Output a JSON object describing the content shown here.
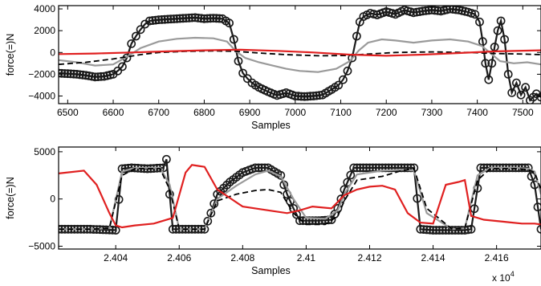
{
  "chart_data": [
    {
      "type": "line",
      "xlabel": "Samples",
      "ylabel": "force(=)N",
      "xlim": [
        6480,
        7540
      ],
      "ylim": [
        -4700,
        4300
      ],
      "xticks": [
        6500,
        6600,
        6700,
        6800,
        6900,
        7000,
        7100,
        7200,
        7300,
        7400,
        7500
      ],
      "yticks": [
        -4000,
        -2000,
        0,
        2000,
        4000
      ],
      "xtick_labels": [
        "6500",
        "6600",
        "6700",
        "6800",
        "6900",
        "7000",
        "7100",
        "7200",
        "7300",
        "7400",
        "7500"
      ],
      "ytick_labels": [
        "−4000",
        "−2000",
        "0",
        "2000",
        "4000"
      ],
      "grid": false,
      "series": [
        {
          "style": "black circle markers",
          "color": "#1a1a1a",
          "x": [
            6480,
            6500,
            6520,
            6540,
            6560,
            6580,
            6600,
            6610,
            6620,
            6630,
            6640,
            6650,
            6660,
            6670,
            6680,
            6700,
            6720,
            6740,
            6760,
            6780,
            6800,
            6820,
            6840,
            6855,
            6865,
            6875,
            6885,
            6895,
            6905,
            6920,
            6940,
            6960,
            6980,
            7000,
            7020,
            7040,
            7060,
            7080,
            7095,
            7105,
            7115,
            7125,
            7135,
            7142,
            7150,
            7165,
            7180,
            7200,
            7220,
            7240,
            7260,
            7280,
            7300,
            7320,
            7340,
            7360,
            7380,
            7395,
            7405,
            7412,
            7418,
            7425,
            7432,
            7438,
            7445,
            7452,
            7460,
            7468,
            7476,
            7486,
            7496,
            7506,
            7516,
            7530,
            7540
          ],
          "y": [
            -1900,
            -1950,
            -2000,
            -2100,
            -2250,
            -2200,
            -2000,
            -1700,
            -1300,
            -500,
            800,
            1500,
            2100,
            2600,
            2900,
            3000,
            3050,
            3100,
            3150,
            3200,
            3100,
            3150,
            3100,
            2700,
            1200,
            -800,
            -1900,
            -2400,
            -2800,
            -3200,
            -3600,
            -3950,
            -3700,
            -4000,
            -4050,
            -4000,
            -3900,
            -3400,
            -3000,
            -2500,
            -1700,
            -500,
            1500,
            2800,
            3300,
            3600,
            3450,
            3750,
            3500,
            3900,
            3650,
            3800,
            3900,
            3800,
            4000,
            3900,
            3700,
            3500,
            2800,
            1000,
            -1000,
            -2500,
            -1000,
            500,
            2000,
            2900,
            1200,
            -2000,
            -3700,
            -2800,
            -3900,
            -3200,
            -4400,
            -3800,
            -4100
          ]
        },
        {
          "style": "black dashed line",
          "color": "#000000",
          "x": [
            6480,
            6540,
            6600,
            6660,
            6700,
            6760,
            6820,
            6870,
            6920,
            6980,
            7050,
            7110,
            7160,
            7220,
            7300,
            7380,
            7440,
            7500,
            7540
          ],
          "y": [
            -1100,
            -900,
            -600,
            -200,
            0,
            100,
            150,
            100,
            -50,
            -200,
            -300,
            -280,
            -150,
            0,
            50,
            0,
            -100,
            -150,
            -200
          ]
        },
        {
          "style": "grey line",
          "color": "#9a9a9a",
          "x": [
            6480,
            6520,
            6560,
            6600,
            6630,
            6660,
            6700,
            6740,
            6780,
            6820,
            6850,
            6870,
            6890,
            6920,
            6950,
            6980,
            7010,
            7050,
            7090,
            7120,
            7140,
            7160,
            7190,
            7220,
            7260,
            7300,
            7340,
            7380,
            7410,
            7430,
            7450,
            7480,
            7510,
            7540
          ],
          "y": [
            -700,
            -900,
            -1200,
            -1100,
            -400,
            400,
            1000,
            1250,
            1350,
            1300,
            1000,
            100,
            -500,
            -900,
            -1200,
            -1500,
            -1700,
            -1800,
            -1500,
            -800,
            200,
            900,
            1200,
            1100,
            900,
            1100,
            1200,
            1000,
            600,
            -100,
            -800,
            -1000,
            -900,
            -1100
          ]
        },
        {
          "style": "red line",
          "color": "#e02020",
          "x": [
            6480,
            6560,
            6640,
            6720,
            6800,
            6880,
            6960,
            7040,
            7120,
            7200,
            7280,
            7360,
            7440,
            7540
          ],
          "y": [
            -150,
            -100,
            0,
            100,
            200,
            250,
            150,
            0,
            -200,
            -300,
            -200,
            -50,
            100,
            200
          ]
        }
      ]
    },
    {
      "type": "line",
      "xlabel": "Samples",
      "ylabel": "force(=)N",
      "xlim": [
        24022,
        24174
      ],
      "ylim": [
        -5300,
        5500
      ],
      "xticks": [
        24040,
        24060,
        24080,
        24100,
        24120,
        24140,
        24160
      ],
      "yticks": [
        -5000,
        0,
        5000
      ],
      "xtick_labels": [
        "2.404",
        "2.406",
        "2.408",
        "2.41",
        "2.412",
        "2.414",
        "2.416"
      ],
      "ytick_labels": [
        "−5000",
        "0",
        "5000"
      ],
      "x_multiplier_label": "x 10",
      "x_multiplier_exponent": "4",
      "grid": false,
      "series": [
        {
          "style": "black circle markers",
          "color": "#1a1a1a",
          "x": [
            24022,
            24032,
            24040,
            24042,
            24045,
            24050,
            24055,
            24056,
            24058,
            24062,
            24068,
            24070,
            24072,
            24076,
            24080,
            24084,
            24088,
            24092,
            24094,
            24096,
            24098,
            24104,
            24108,
            24110,
            24112,
            24115,
            24118,
            24124,
            24130,
            24134,
            24136,
            24140,
            24146,
            24150,
            24152,
            24155,
            24160,
            24166,
            24170,
            24172,
            24174
          ],
          "y": [
            -3200,
            -3200,
            -3300,
            3200,
            3300,
            3200,
            3300,
            4200,
            -3200,
            -3200,
            -3200,
            -1500,
            500,
            1800,
            2800,
            3300,
            3300,
            2500,
            500,
            -1000,
            -2300,
            -2300,
            -2200,
            -1000,
            1000,
            3300,
            3300,
            3300,
            3300,
            3300,
            -3200,
            -3300,
            -3300,
            -3300,
            -3200,
            3300,
            3300,
            3300,
            3300,
            1500,
            -3200
          ]
        },
        {
          "style": "black dashed line",
          "color": "#000000",
          "x": [
            24022,
            24032,
            24038,
            24042,
            24046,
            24054,
            24057,
            24060,
            24068,
            24072,
            24078,
            24084,
            24088,
            24092,
            24096,
            24100,
            24106,
            24110,
            24112,
            24116,
            24124,
            24130,
            24134,
            24138,
            24146,
            24150,
            24154,
            24158,
            24166,
            24170,
            24172,
            24174
          ],
          "y": [
            -3200,
            -3200,
            -3100,
            2500,
            3200,
            3200,
            1000,
            -3200,
            -3200,
            -200,
            500,
            900,
            1000,
            700,
            -1500,
            -2700,
            -2700,
            -1800,
            -200,
            2000,
            2400,
            3000,
            3200,
            -1000,
            -3200,
            -3100,
            2000,
            3200,
            3200,
            3100,
            2800,
            1000
          ]
        },
        {
          "style": "grey line",
          "color": "#9a9a9a",
          "x": [
            24022,
            24032,
            24038,
            24042,
            24046,
            24054,
            24057,
            24060,
            24068,
            24072,
            24078,
            24084,
            24088,
            24092,
            24096,
            24100,
            24106,
            24110,
            24112,
            24116,
            24124,
            24130,
            24134,
            24138,
            24146,
            24150,
            24154,
            24158,
            24166,
            24170,
            24172,
            24174
          ],
          "y": [
            -3200,
            -3200,
            -3100,
            2900,
            3300,
            3300,
            1500,
            -3200,
            -3200,
            0,
            1400,
            2600,
            3000,
            2400,
            0,
            -2000,
            -2100,
            -1200,
            500,
            2600,
            3000,
            3100,
            3000,
            -1500,
            -3200,
            -3100,
            2500,
            3300,
            3300,
            3200,
            2900,
            500
          ]
        },
        {
          "style": "red line",
          "color": "#e02020",
          "x": [
            24022,
            24030,
            24034,
            24036,
            24038,
            24040,
            24042,
            24046,
            24052,
            24058,
            24062,
            24064,
            24066,
            24068,
            24072,
            24080,
            24088,
            24094,
            24098,
            24102,
            24108,
            24112,
            24116,
            24120,
            24124,
            24128,
            24132,
            24136,
            24140,
            24144,
            24148,
            24150,
            24152,
            24156,
            24162,
            24168,
            24172,
            24174
          ],
          "y": [
            2700,
            3000,
            1500,
            0,
            -1500,
            -2800,
            -3000,
            -2800,
            -2600,
            -2000,
            2800,
            3600,
            3500,
            3400,
            1000,
            -800,
            -1200,
            -1500,
            -1200,
            -800,
            -1000,
            400,
            1000,
            1300,
            1400,
            1000,
            -1500,
            -2500,
            -2600,
            1500,
            1800,
            2000,
            -1800,
            -2200,
            -2400,
            -2600,
            -2600,
            -2700
          ]
        }
      ]
    }
  ]
}
